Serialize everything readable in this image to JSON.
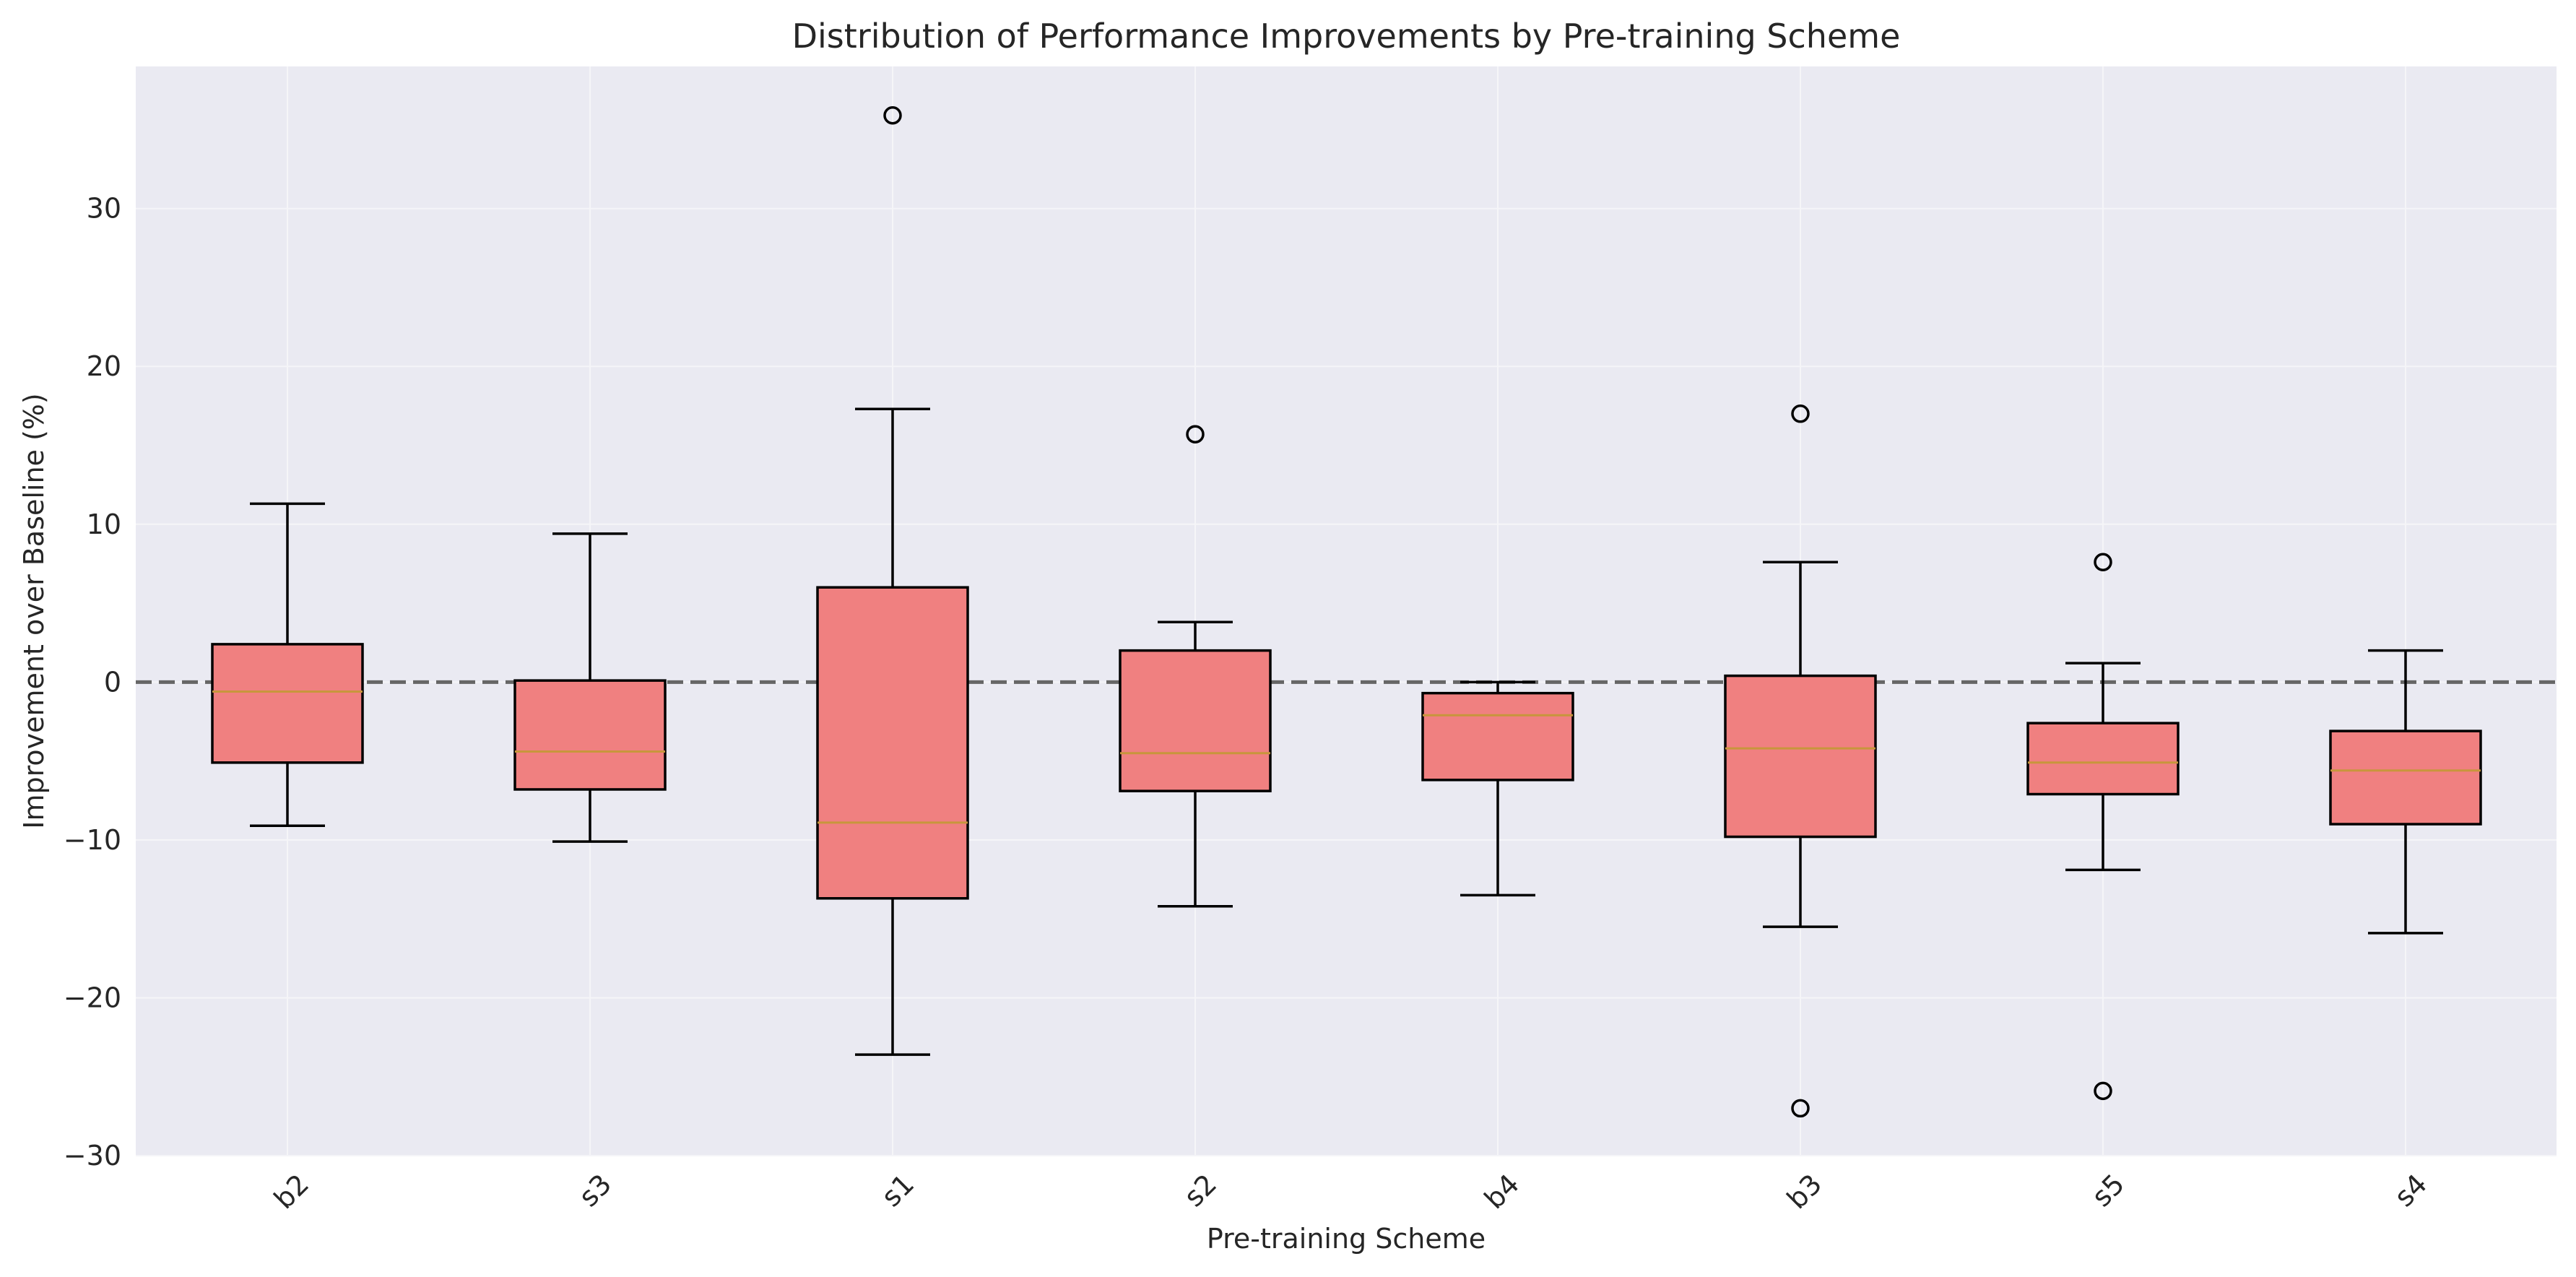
{
  "chart_data": {
    "type": "box",
    "title": "Distribution of Performance Improvements by Pre-training Scheme",
    "xlabel": "Pre-training Scheme",
    "ylabel": "Improvement over Baseline (%)",
    "ylim": [
      -30,
      39
    ],
    "yticks": [
      -30,
      -20,
      -10,
      0,
      10,
      20,
      30
    ],
    "ytick_labels": [
      "−30",
      "−20",
      "−10",
      "0",
      "10",
      "20",
      "30"
    ],
    "grid": true,
    "reference_line": {
      "y": 0,
      "style": "dashed"
    },
    "colors": {
      "background": "#eaeaf2",
      "box_fill": "#f08080",
      "box_edge": "#000000",
      "median": "#c8963c",
      "grid": "#f5f5f8",
      "reference_line": "#666666"
    },
    "categories": [
      "b2",
      "s3",
      "s1",
      "s2",
      "b4",
      "b3",
      "s5",
      "s4"
    ],
    "boxes": [
      {
        "name": "b2",
        "whisker_low": -9.1,
        "q1": -5.1,
        "median": -0.6,
        "q3": 2.4,
        "whisker_high": 11.3,
        "outliers": []
      },
      {
        "name": "s3",
        "whisker_low": -10.1,
        "q1": -6.8,
        "median": -4.4,
        "q3": 0.1,
        "whisker_high": 9.4,
        "outliers": []
      },
      {
        "name": "s1",
        "whisker_low": -23.6,
        "q1": -13.7,
        "median": -8.9,
        "q3": 6.0,
        "whisker_high": 17.3,
        "outliers": [
          35.9
        ]
      },
      {
        "name": "s2",
        "whisker_low": -14.2,
        "q1": -6.9,
        "median": -4.5,
        "q3": 2.0,
        "whisker_high": 3.8,
        "outliers": [
          15.7
        ]
      },
      {
        "name": "b4",
        "whisker_low": -13.5,
        "q1": -6.2,
        "median": -2.1,
        "q3": -0.7,
        "whisker_high": 0.0,
        "outliers": []
      },
      {
        "name": "b3",
        "whisker_low": -15.5,
        "q1": -9.8,
        "median": -4.2,
        "q3": 0.4,
        "whisker_high": 7.6,
        "outliers": [
          17.0,
          -27.0
        ]
      },
      {
        "name": "s5",
        "whisker_low": -11.9,
        "q1": -7.1,
        "median": -5.1,
        "q3": -2.6,
        "whisker_high": 1.2,
        "outliers": [
          7.6,
          -25.9
        ]
      },
      {
        "name": "s4",
        "whisker_low": -15.9,
        "q1": -9.0,
        "median": -5.6,
        "q3": -3.1,
        "whisker_high": 2.0,
        "outliers": []
      }
    ]
  }
}
